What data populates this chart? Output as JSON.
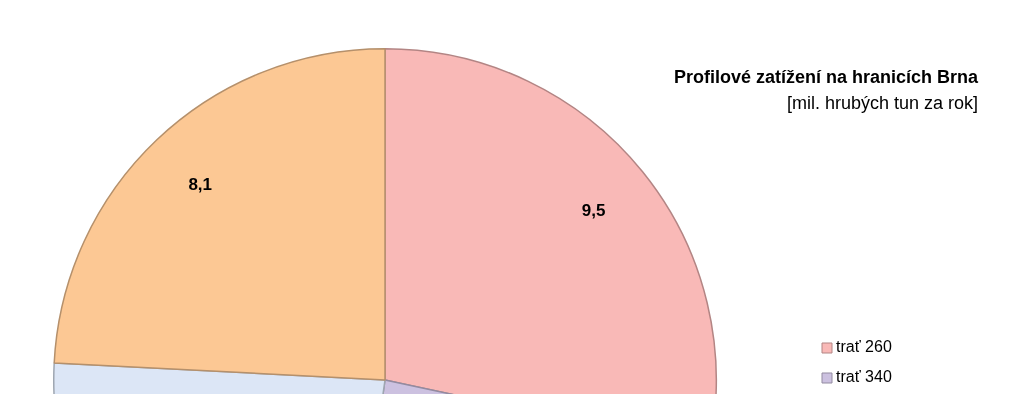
{
  "chart_data": {
    "type": "pie",
    "title": "Profilové zatížení na hranicích Brna",
    "subtitle": "[mil. hrubých tun za rok]",
    "categories": [
      "trať 260",
      "trať 340",
      null,
      null
    ],
    "values": [
      9.5,
      8.0,
      7.9,
      8.1
    ],
    "colors": [
      "#f9b9b7",
      "#ccc1e0",
      "#dce6f6",
      "#fcc894"
    ],
    "value_labels": [
      "9,5",
      null,
      null,
      "8,1"
    ],
    "legend": "right"
  }
}
